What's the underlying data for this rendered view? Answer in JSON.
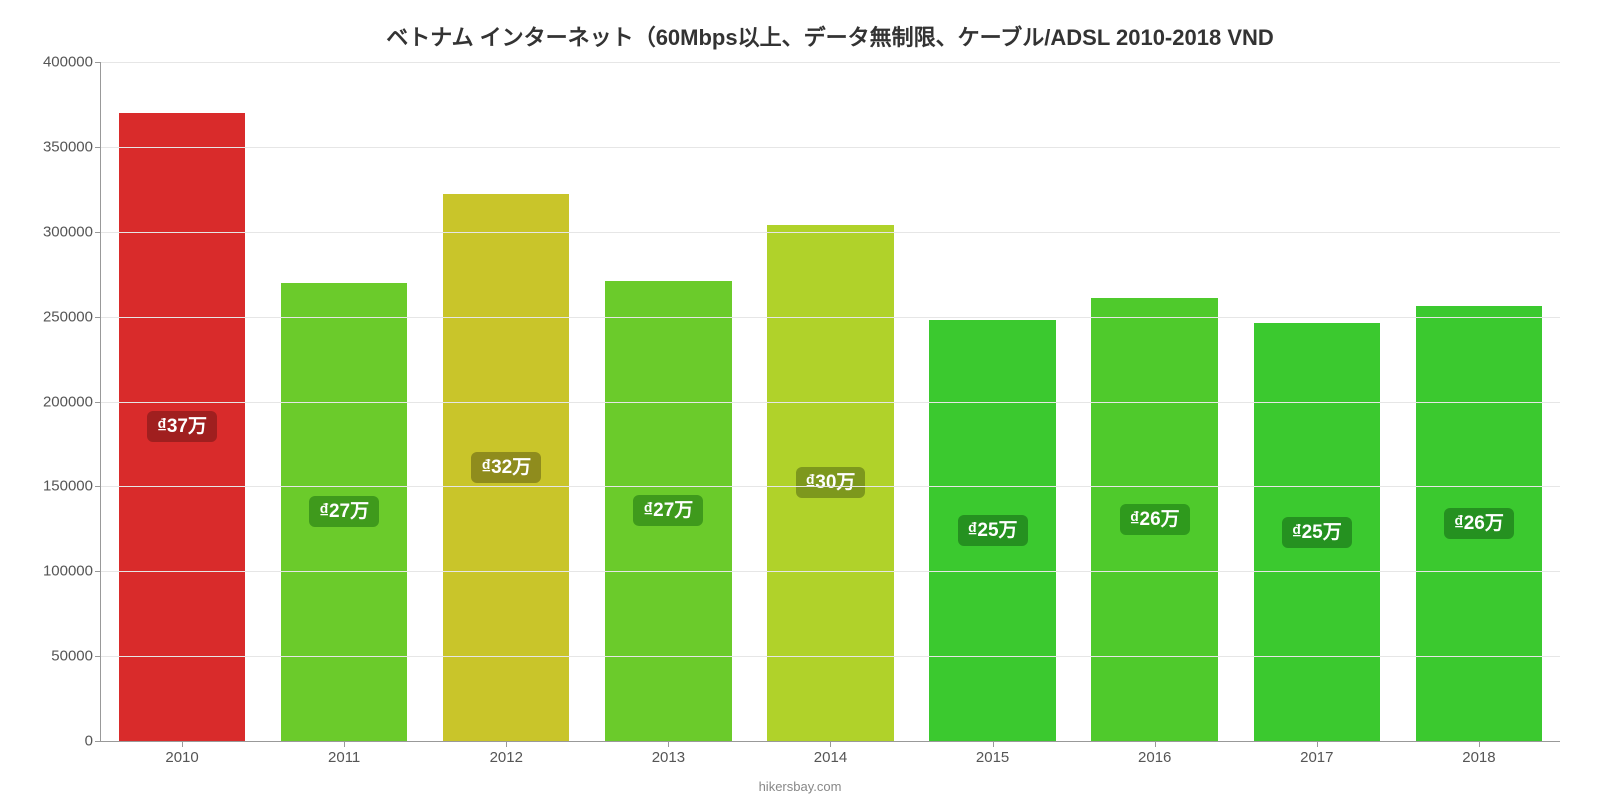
{
  "chart": {
    "type": "bar",
    "title": "ベトナム インターネット（60Mbps以上、データ無制限、ケーブル/ADSL 2010-2018 VND",
    "title_fontsize": 22,
    "title_color": "#333333",
    "background_color": "#ffffff",
    "grid_color": "#e6e6e6",
    "axis_color": "#999999",
    "tick_label_color": "#555555",
    "tick_label_fontsize": 15,
    "source_text": "hikersbay.com",
    "source_fontsize": 13,
    "source_color": "#888888",
    "ylim": [
      0,
      400000
    ],
    "ytick_step": 50000,
    "yticks": [
      "0",
      "50000",
      "100000",
      "150000",
      "200000",
      "250000",
      "300000",
      "350000",
      "400000"
    ],
    "bar_width_pct": 78,
    "bar_label_fontsize": 19,
    "bar_label_text_color": "#ffffff",
    "categories": [
      "2010",
      "2011",
      "2012",
      "2013",
      "2014",
      "2015",
      "2016",
      "2017",
      "2018"
    ],
    "values": [
      370000,
      270000,
      322000,
      271000,
      304000,
      248000,
      261000,
      246000,
      256000
    ],
    "bar_colors": [
      "#d92b2b",
      "#6bcb2b",
      "#c9c52a",
      "#6bcb2b",
      "#b0d22a",
      "#3bc92f",
      "#4fca2c",
      "#3bc92f",
      "#3bc92f"
    ],
    "bar_label_bg_colors": [
      "#a01f1f",
      "#3f9a1c",
      "#8f8c1d",
      "#3f9a1c",
      "#7d981d",
      "#259120",
      "#2f9a1d",
      "#259120",
      "#259120"
    ],
    "bar_labels": [
      "₫37万",
      "₫27万",
      "₫32万",
      "₫27万",
      "₫30万",
      "₫25万",
      "₫26万",
      "₫25万",
      "₫26万"
    ]
  }
}
